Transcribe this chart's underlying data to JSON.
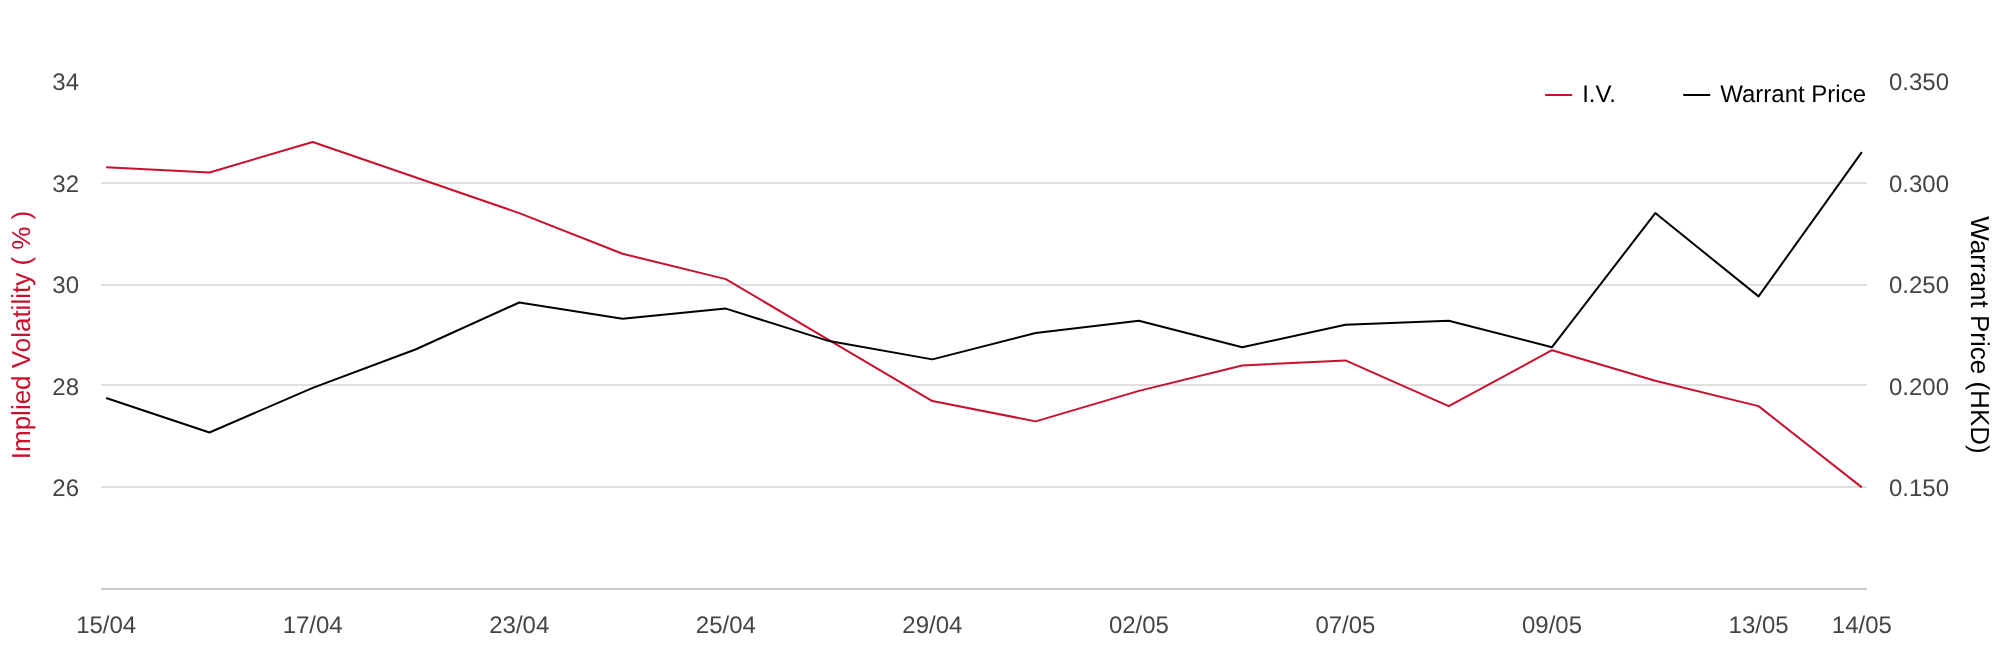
{
  "chart_data": {
    "type": "line",
    "ylabel": "Implied Volatility ( % )",
    "y2label": "Warrant Price (HKD)",
    "categories": [
      "15/04",
      null,
      "17/04",
      null,
      "23/04",
      null,
      "25/04",
      null,
      "29/04",
      null,
      "02/05",
      null,
      "07/05",
      null,
      "09/05",
      null,
      "13/05",
      "14/05"
    ],
    "ylim": [
      24,
      34
    ],
    "yticks": [
      26,
      28,
      30,
      32,
      34
    ],
    "y2lim": [
      0.1,
      0.35
    ],
    "y2ticks": [
      {
        "value": 0.15,
        "label": "0.150"
      },
      {
        "value": 0.2,
        "label": "0.200"
      },
      {
        "value": 0.25,
        "label": "0.250"
      },
      {
        "value": 0.3,
        "label": "0.300"
      },
      {
        "value": 0.35,
        "label": "0.350"
      }
    ],
    "grid": "y",
    "legend": "top right",
    "marker": "none",
    "line_style": "solid",
    "series": [
      {
        "name": "I.V.",
        "color": "#c8102e",
        "values": [
          32.3,
          32.2,
          32.8,
          32.1,
          31.4,
          30.6,
          30.1,
          28.9,
          27.7,
          27.3,
          27.9,
          28.4,
          28.5,
          27.6,
          28.7,
          28.1,
          27.6,
          26.0
        ]
      },
      {
        "name": "Warrant Price",
        "color": "#000000",
        "axis": "y2",
        "values": [
          0.194,
          0.177,
          0.199,
          0.218,
          0.241,
          0.233,
          0.238,
          0.222,
          0.213,
          0.226,
          0.232,
          0.219,
          0.23,
          0.232,
          0.219,
          0.285,
          0.244,
          0.315
        ]
      }
    ]
  }
}
